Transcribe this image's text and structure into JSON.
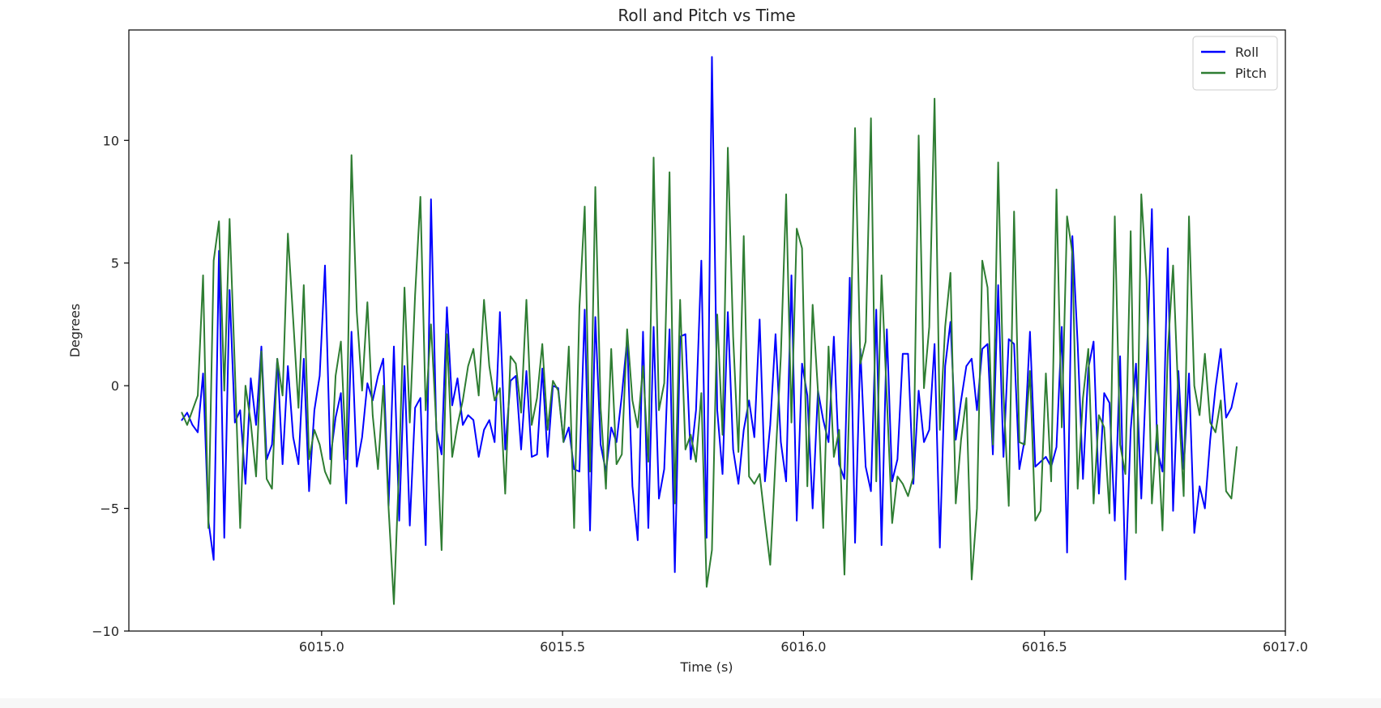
{
  "chart_data": {
    "type": "line",
    "title": "Roll and Pitch vs Time",
    "xlabel": "Time (s)",
    "ylabel": "Degrees",
    "xlim": [
      6014.6,
      6017.0
    ],
    "ylim": [
      -10,
      14.5
    ],
    "xticks": [
      6015.0,
      6015.5,
      6016.0,
      6016.5,
      6017.0
    ],
    "xtick_labels": [
      "6015.0",
      "6015.5",
      "6016.0",
      "6016.5",
      "6017.0"
    ],
    "yticks": [
      -10,
      -5,
      0,
      5,
      10
    ],
    "ytick_labels": [
      "−10",
      "−5",
      "0",
      "5",
      "10"
    ],
    "grid": false,
    "legend_position": "top-right",
    "x_start": 6014.71,
    "x_step": 0.011,
    "series": [
      {
        "name": "Roll",
        "color": "#0000ff",
        "values": [
          -1.4,
          -1.1,
          -1.6,
          -1.9,
          0.5,
          -5.5,
          -7.1,
          5.5,
          -6.2,
          3.9,
          -1.5,
          -1.0,
          -4.0,
          0.3,
          -1.6,
          1.6,
          -3.0,
          -2.4,
          1.1,
          -3.2,
          0.8,
          -2.1,
          -3.2,
          1.1,
          -4.3,
          -1.0,
          0.4,
          4.9,
          -3.0,
          -1.3,
          -0.3,
          -4.8,
          2.2,
          -3.3,
          -2.1,
          0.1,
          -0.6,
          0.4,
          1.1,
          -4.9,
          1.6,
          -5.5,
          0.8,
          -5.7,
          -0.9,
          -0.5,
          -6.5,
          7.6,
          -1.8,
          -2.8,
          3.2,
          -0.8,
          0.3,
          -1.6,
          -1.2,
          -1.4,
          -2.9,
          -1.8,
          -1.4,
          -2.3,
          3.0,
          -2.6,
          0.2,
          0.4,
          -2.6,
          0.6,
          -2.9,
          -2.8,
          0.7,
          -2.9,
          0.0,
          -0.1,
          -2.3,
          -1.7,
          -3.4,
          -3.5,
          3.1,
          -5.9,
          2.8,
          -2.4,
          -3.5,
          -1.7,
          -2.3,
          -0.4,
          1.9,
          -4.1,
          -6.3,
          2.2,
          -5.8,
          2.4,
          -4.6,
          -3.4,
          2.3,
          -7.6,
          2.0,
          2.1,
          -3.0,
          -1.0,
          5.1,
          -6.2,
          13.4,
          -1.0,
          -3.6,
          3.0,
          -2.6,
          -4.0,
          -1.8,
          -0.6,
          -2.1,
          2.7,
          -3.9,
          -1.6,
          2.1,
          -2.3,
          -3.9,
          4.5,
          -5.5,
          0.9,
          -0.4,
          -5.0,
          -0.2,
          -1.4,
          -2.3,
          2.0,
          -3.2,
          -3.8,
          4.4,
          -6.4,
          1.5,
          -3.3,
          -4.3,
          3.1,
          -6.5,
          2.3,
          -3.9,
          -3.0,
          1.3,
          1.3,
          -4.0,
          -0.2,
          -2.3,
          -1.8,
          1.7,
          -6.6,
          0.8,
          2.6,
          -2.2,
          -0.6,
          0.8,
          1.1,
          -1.0,
          1.5,
          1.7,
          -2.8,
          4.1,
          -2.9,
          1.9,
          1.7,
          -3.4,
          -2.2,
          2.2,
          -3.3,
          -3.1,
          -2.9,
          -3.3,
          -2.5,
          2.4,
          -6.8,
          6.1,
          1.7,
          -3.8,
          0.7,
          1.8,
          -4.4,
          -0.3,
          -0.7,
          -5.5,
          1.2,
          -7.9,
          -1.8,
          0.9,
          -4.6,
          0.8,
          7.2,
          -2.6,
          -3.5,
          5.6,
          -5.1,
          0.6,
          -3.4,
          0.5,
          -6.0,
          -4.1,
          -5.0,
          -2.2,
          -0.1,
          1.5,
          -1.3,
          -0.9,
          0.1
        ]
      },
      {
        "name": "Pitch",
        "color": "#2e7d32",
        "values": [
          -1.1,
          -1.6,
          -1.0,
          -0.4,
          4.5,
          -5.8,
          5.1,
          6.7,
          -0.2,
          6.8,
          0.7,
          -5.8,
          0.0,
          -1.5,
          -3.7,
          1.4,
          -3.8,
          -4.2,
          1.1,
          -0.4,
          6.2,
          2.7,
          -0.9,
          4.1,
          -3.0,
          -1.8,
          -2.4,
          -3.5,
          -4.0,
          0.4,
          1.8,
          -3.0,
          9.4,
          3.0,
          -0.2,
          3.4,
          -1.2,
          -3.4,
          0.0,
          -5.0,
          -8.9,
          -3.2,
          4.0,
          -1.5,
          3.7,
          7.7,
          -1.0,
          2.5,
          -1.6,
          -6.7,
          2.1,
          -2.9,
          -1.6,
          -0.6,
          0.8,
          1.5,
          -0.4,
          3.5,
          0.8,
          -0.6,
          -0.1,
          -4.4,
          1.2,
          0.9,
          -1.1,
          3.5,
          -1.6,
          -0.5,
          1.7,
          -1.8,
          0.2,
          -0.2,
          -2.3,
          1.6,
          -5.8,
          3.2,
          7.3,
          -3.5,
          8.1,
          -0.9,
          -4.2,
          1.5,
          -3.2,
          -2.8,
          2.3,
          -0.6,
          -1.7,
          0.8,
          -3.1,
          9.3,
          -1.0,
          0.1,
          8.7,
          -4.8,
          3.5,
          -2.6,
          -2.0,
          -3.1,
          -0.3,
          -8.2,
          -6.7,
          2.9,
          -2.0,
          9.7,
          2.0,
          -2.7,
          6.1,
          -3.7,
          -4.0,
          -3.6,
          -5.5,
          -7.3,
          -3.0,
          1.2,
          7.8,
          -1.5,
          6.4,
          5.6,
          -4.1,
          3.3,
          -0.2,
          -5.8,
          1.6,
          -2.9,
          -1.8,
          -7.7,
          0.0,
          10.5,
          0.9,
          1.8,
          10.9,
          -3.9,
          4.5,
          -0.5,
          -5.6,
          -3.7,
          -4.0,
          -4.5,
          -3.7,
          10.2,
          -0.1,
          2.4,
          11.7,
          -1.8,
          2.4,
          4.6,
          -4.8,
          -2.2,
          -0.5,
          -7.9,
          -5.0,
          5.1,
          4.0,
          -2.4,
          9.1,
          -0.3,
          -4.9,
          7.1,
          -2.3,
          -2.4,
          0.6,
          -5.5,
          -5.1,
          0.5,
          -3.9,
          8.0,
          -1.7,
          6.9,
          5.4,
          -4.2,
          -0.5,
          1.5,
          -4.8,
          -1.2,
          -1.7,
          -5.2,
          6.9,
          -2.4,
          -3.6,
          6.3,
          -6.0,
          7.8,
          4.3,
          -4.8,
          -1.6,
          -5.9,
          1.4,
          4.9,
          -0.5,
          -4.5,
          6.9,
          0.0,
          -1.2,
          1.3,
          -1.5,
          -1.9,
          -0.6,
          -4.3,
          -4.6,
          -2.5
        ]
      }
    ]
  }
}
